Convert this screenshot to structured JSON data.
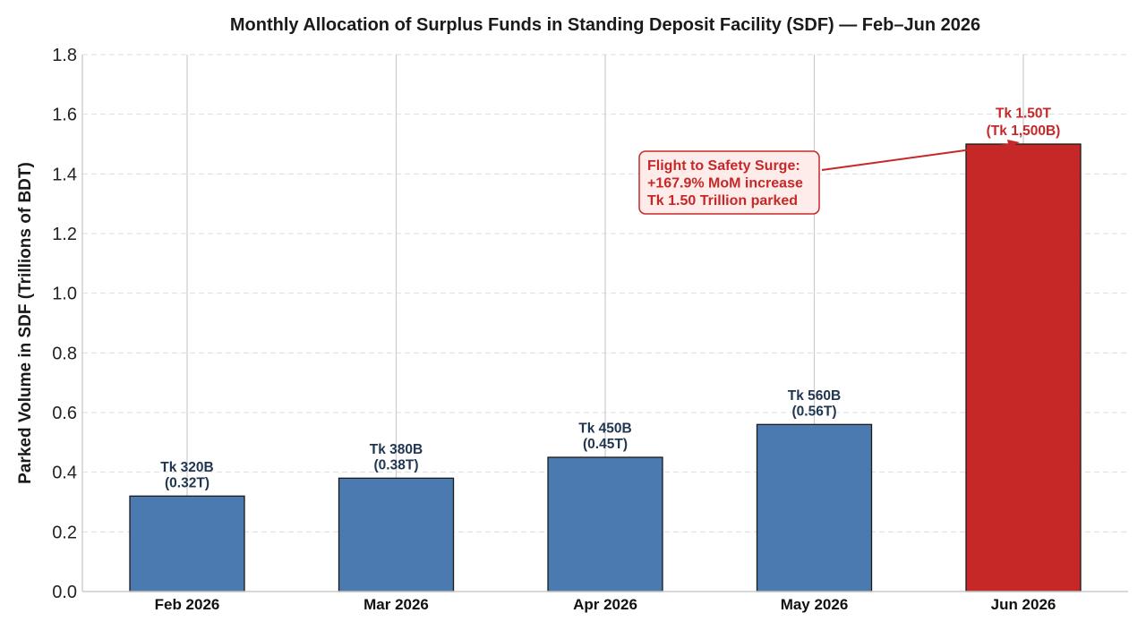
{
  "chart_data": {
    "type": "bar",
    "title": "Monthly Allocation of Surplus Funds in Standing Deposit Facility (SDF) — Feb–Jun 2026",
    "xlabel": "",
    "ylabel": "Parked Volume in SDF (Trillions of BDT)",
    "categories": [
      "Feb 2026",
      "Mar 2026",
      "Apr 2026",
      "May 2026",
      "Jun 2026"
    ],
    "values": [
      0.32,
      0.38,
      0.45,
      0.56,
      1.5
    ],
    "data_labels": [
      [
        "Tk 320B",
        "(0.32T)"
      ],
      [
        "Tk 380B",
        "(0.38T)"
      ],
      [
        "Tk 450B",
        "(0.45T)"
      ],
      [
        "Tk 560B",
        "(0.56T)"
      ],
      [
        "Tk 1.50T",
        "(Tk 1,500B)"
      ]
    ],
    "ylim": [
      0,
      1.8
    ],
    "yticks": [
      "0.0",
      "0.2",
      "0.4",
      "0.6",
      "0.8",
      "1.0",
      "1.2",
      "1.4",
      "1.6",
      "1.8"
    ],
    "grid": true,
    "bar_colors": [
      "#4a7aaf",
      "#4a7aaf",
      "#4a7aaf",
      "#4a7aaf",
      "#c62828"
    ],
    "label_colors": [
      "#1f3550",
      "#1f3550",
      "#1f3550",
      "#1f3550",
      "#c62828"
    ],
    "annotation": {
      "lines": [
        "Flight to Safety Surge:",
        "+167.9% MoM increase",
        "Tk 1.50 Trillion parked"
      ],
      "target_category": "Jun 2026",
      "text_color": "#c62828",
      "box_fill": "#fdecea",
      "border_color": "#c62828"
    }
  }
}
